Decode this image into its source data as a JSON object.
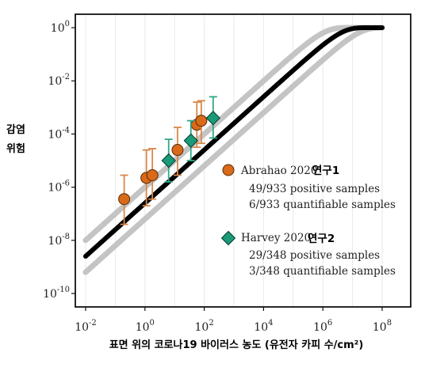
{
  "chart_data": {
    "type": "scatter",
    "title": "",
    "xlabel": "표면 위의 코로나19 바이러스 농도 (유전자 카피 수/cm²)",
    "ylabel_lines": [
      "감염",
      "위험"
    ],
    "x_scale": "log10",
    "y_scale": "log10",
    "xlim": [
      -2,
      8
    ],
    "ylim": [
      -10,
      0
    ],
    "x_ticks": [
      {
        "exp": -2,
        "base": "10",
        "sup": "-2"
      },
      {
        "exp": 0,
        "base": "10",
        "sup": "0"
      },
      {
        "exp": 2,
        "base": "10",
        "sup": "2"
      },
      {
        "exp": 4,
        "base": "10",
        "sup": "4"
      },
      {
        "exp": 6,
        "base": "10",
        "sup": "6"
      },
      {
        "exp": 8,
        "base": "10",
        "sup": "8"
      }
    ],
    "y_ticks": [
      {
        "exp": 0,
        "base": "10",
        "sup": "0"
      },
      {
        "exp": -2,
        "base": "10",
        "sup": "-2"
      },
      {
        "exp": -4,
        "base": "10",
        "sup": "-4"
      },
      {
        "exp": -6,
        "base": "10",
        "sup": "-6"
      },
      {
        "exp": -8,
        "base": "10",
        "sup": "-8"
      },
      {
        "exp": -10,
        "base": "10",
        "sup": "-10"
      }
    ],
    "grid": true,
    "legend_position": "right-middle",
    "colors": {
      "model_line": "#000000",
      "bound_lines": "#c4c4c4",
      "abrahao": "#d86a1a",
      "harvey": "#1a9a78",
      "abrahao_error": "#d9874a",
      "harvey_error": "#2fa88a"
    },
    "model_lines": [
      {
        "role": "central",
        "slope_log_y_per_log_x": 1.0,
        "intercept_log_y": -6.6
      },
      {
        "role": "upper",
        "slope_log_y_per_log_x": 1.0,
        "intercept_log_y": -6.0
      },
      {
        "role": "lower",
        "slope_log_y_per_log_x": 1.0,
        "intercept_log_y": -7.2
      }
    ],
    "series": [
      {
        "name": "Abrahao 2020",
        "label": "연구1",
        "marker": "circle",
        "details": [
          "49/933 positive samples",
          "6/933 quantifiable samples"
        ],
        "points": [
          {
            "log_x": -0.7,
            "log_y": -6.45,
            "err_lo": -7.4,
            "err_hi": -5.55
          },
          {
            "log_x": 0.05,
            "log_y": -5.65,
            "err_lo": -6.7,
            "err_hi": -4.6
          },
          {
            "log_x": 0.25,
            "log_y": -5.55,
            "err_lo": -6.45,
            "err_hi": -4.55
          },
          {
            "log_x": 1.1,
            "log_y": -4.6,
            "err_lo": -5.55,
            "err_hi": -3.75
          },
          {
            "log_x": 1.75,
            "log_y": -3.65,
            "err_lo": -4.5,
            "err_hi": -2.8
          },
          {
            "log_x": 1.9,
            "log_y": -3.5,
            "err_lo": -4.35,
            "err_hi": -2.75
          }
        ]
      },
      {
        "name": "Harvey 2020",
        "label": "연구2",
        "marker": "diamond",
        "details": [
          "29/348 positive samples",
          "3/348 quantifiable samples"
        ],
        "points": [
          {
            "log_x": 0.8,
            "log_y": -5.0,
            "err_lo": -5.8,
            "err_hi": -4.2
          },
          {
            "log_x": 1.55,
            "log_y": -4.25,
            "err_lo": -5.0,
            "err_hi": -3.5
          },
          {
            "log_x": 2.3,
            "log_y": -3.4,
            "err_lo": -4.15,
            "err_hi": -2.6
          }
        ]
      }
    ]
  }
}
